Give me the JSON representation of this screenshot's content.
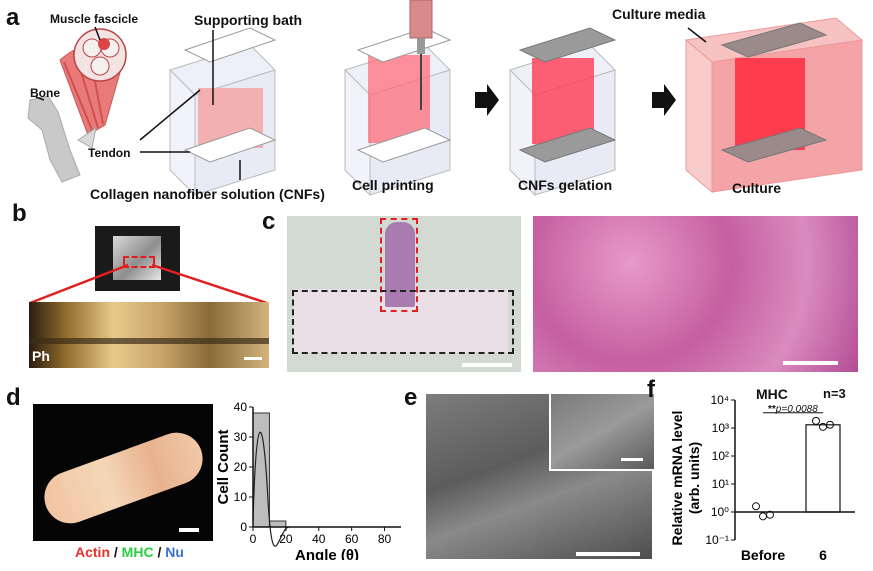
{
  "panels": {
    "a": {
      "letter": "a",
      "labels": {
        "muscle_fascicle": "Muscle fascicle",
        "bone": "Bone",
        "tendon": "Tendon",
        "supporting_bath": "Supporting bath",
        "cnfs": "Collagen nanofiber solution (CNFs)",
        "cell_printing": "Cell printing",
        "cnfs_gelation": "CNFs gelation",
        "culture_media": "Culture media",
        "culture": "Culture"
      }
    },
    "b": {
      "letter": "b",
      "inset_label": "Ph"
    },
    "c": {
      "letter": "c"
    },
    "d": {
      "letter": "d",
      "legend": {
        "actin": "Actin",
        "sep1": " / ",
        "mhc": "MHC",
        "sep2": " / ",
        "nu": "Nu"
      },
      "colors": {
        "actin": "#e8302a",
        "mhc": "#2ecc40",
        "nu": "#3a6fd8"
      }
    },
    "e": {
      "letter": "e"
    },
    "f": {
      "letter": "f",
      "title": "MHC",
      "n": "n=3",
      "sig": "**",
      "p": "p=0.0088"
    }
  },
  "chart_data": [
    {
      "type": "bar",
      "panel": "d",
      "xlabel": "Angle (θ)",
      "ylabel": "Cell Count",
      "xlim": [
        0,
        90
      ],
      "ylim": [
        0,
        40
      ],
      "xticks": [
        "0",
        "20",
        "40",
        "60",
        "80"
      ],
      "yticks": [
        "0",
        "10",
        "20",
        "30",
        "40"
      ],
      "bins": [
        {
          "x0": 0,
          "x1": 10,
          "value": 38
        },
        {
          "x0": 10,
          "x1": 20,
          "value": 2
        },
        {
          "x0": 20,
          "x1": 30,
          "value": 0
        }
      ]
    },
    {
      "type": "bar",
      "panel": "f",
      "ylabel": "Relative mRNA level (arb. units)",
      "yscale": "log",
      "ylim": [
        0.1,
        10000
      ],
      "yticks": [
        "10⁻¹",
        "10⁰",
        "10¹",
        "10²",
        "10³",
        "10⁴"
      ],
      "categories": [
        "Before",
        "6"
      ],
      "values": [
        1,
        1300
      ],
      "points": [
        [
          1.6,
          0.7,
          0.8
        ],
        [
          1800,
          1100,
          1300
        ]
      ]
    }
  ]
}
